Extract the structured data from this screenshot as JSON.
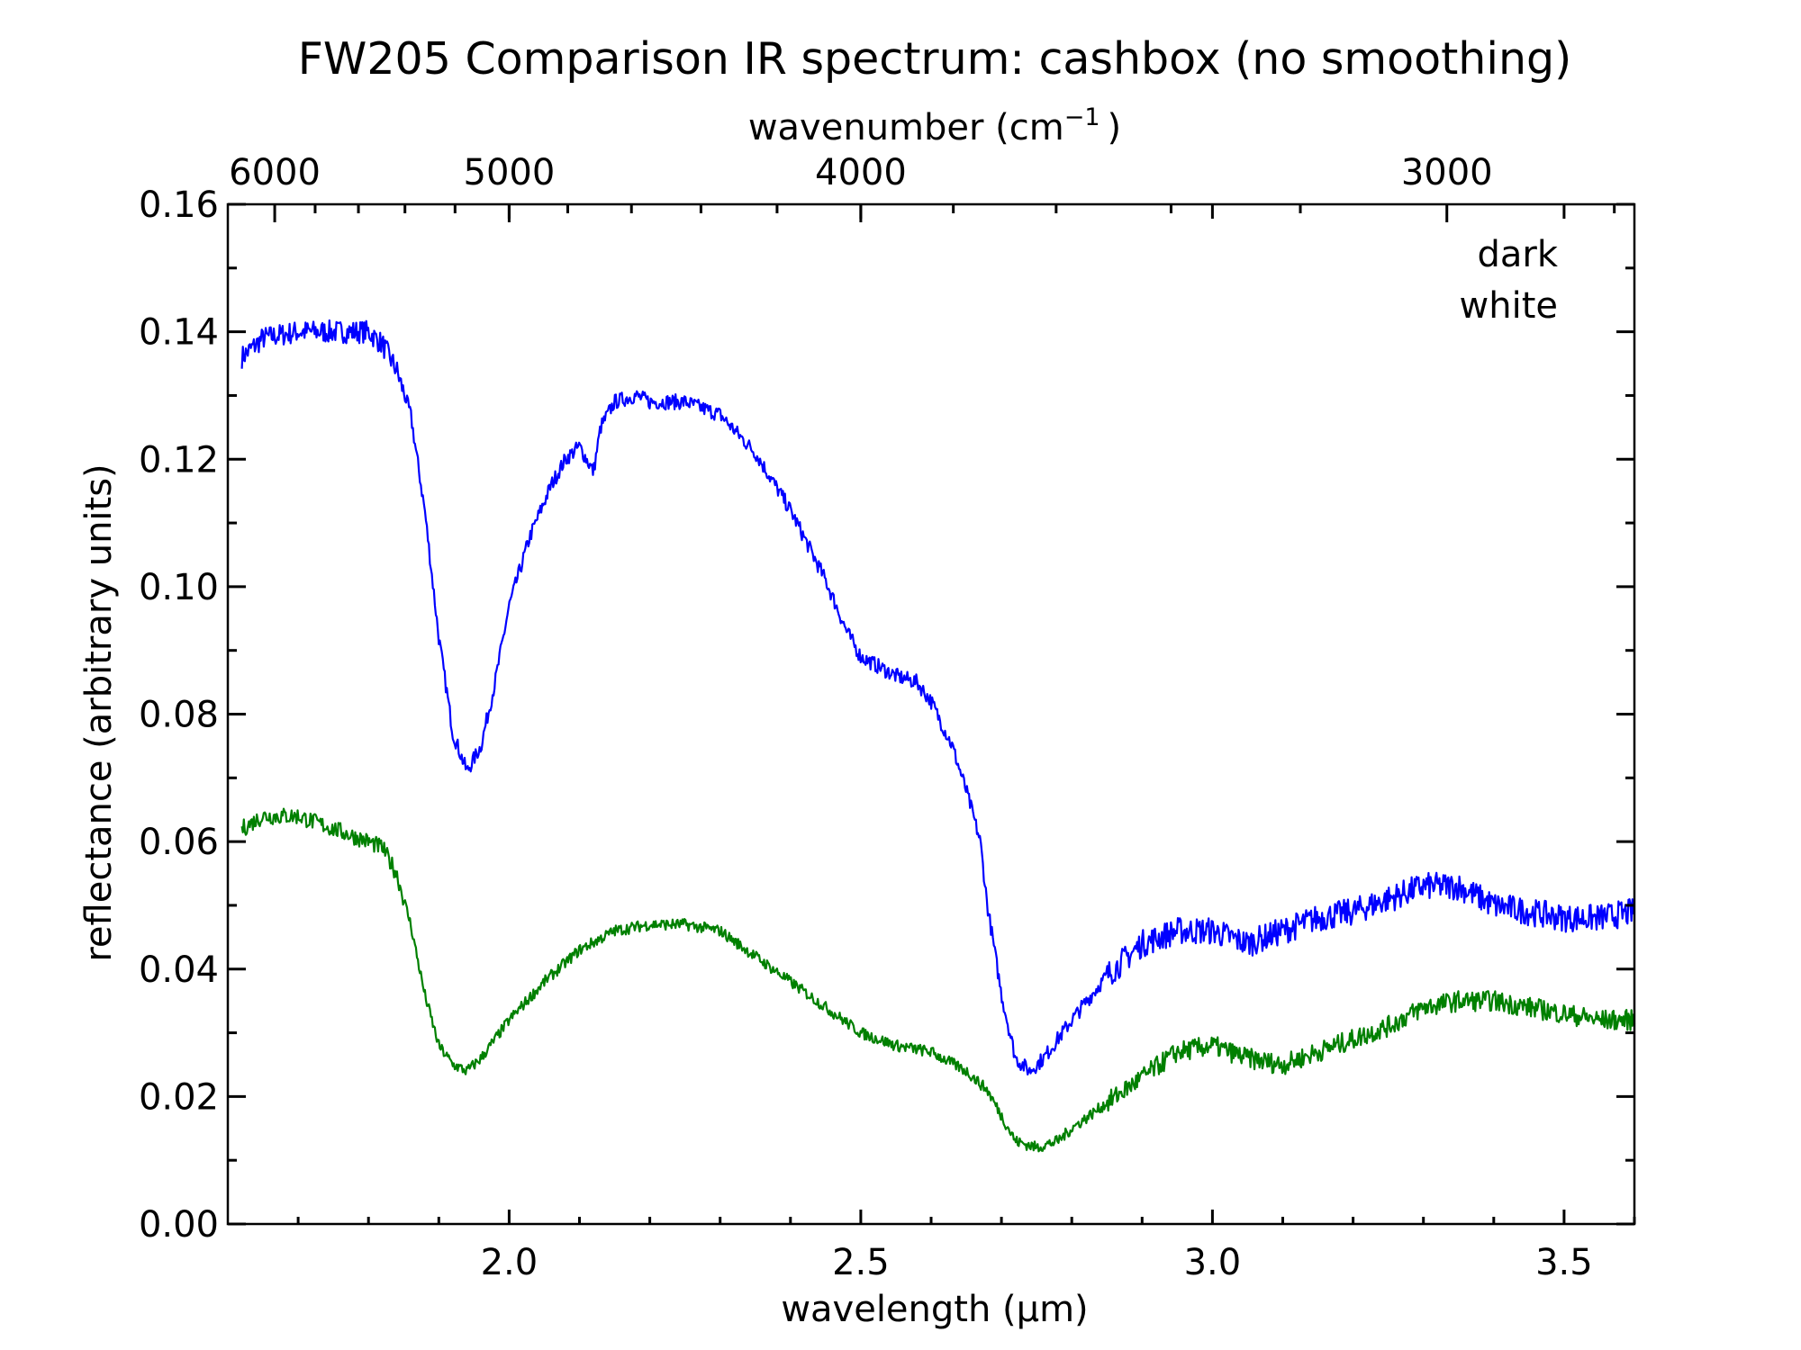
{
  "chart_data": {
    "type": "line",
    "title": "FW205 Comparison IR spectrum: cashbox (no smoothing)",
    "xlabel": "wavelength (μm)",
    "ylabel": "reflectance (arbitrary units)",
    "top_xlabel": "wavenumber (cm",
    "top_xlabel_sup": "−1",
    "top_xlabel_end": ")",
    "xlim": [
      1.6,
      3.6
    ],
    "ylim": [
      0.0,
      0.16
    ],
    "x_ticks": [
      2.0,
      2.5,
      3.0,
      3.5
    ],
    "x_tick_labels": [
      "2.0",
      "2.5",
      "3.0",
      "3.5"
    ],
    "y_ticks": [
      0.0,
      0.02,
      0.04,
      0.06,
      0.08,
      0.1,
      0.12,
      0.14,
      0.16
    ],
    "y_tick_labels": [
      "0.00",
      "0.02",
      "0.04",
      "0.06",
      "0.08",
      "0.10",
      "0.12",
      "0.14",
      "0.16"
    ],
    "top_ticks_wavenumber": [
      6000,
      5000,
      4000,
      3000
    ],
    "top_tick_labels": [
      "6000",
      "5000",
      "4000",
      "3000"
    ],
    "legend_position": "top-right",
    "grid": false,
    "series": [
      {
        "name": "dark",
        "color": "#0000ff",
        "x": [
          1.62,
          1.65,
          1.7,
          1.75,
          1.8,
          1.82,
          1.84,
          1.86,
          1.88,
          1.9,
          1.92,
          1.94,
          1.96,
          1.98,
          2.0,
          2.03,
          2.06,
          2.08,
          2.1,
          2.12,
          2.13,
          2.15,
          2.18,
          2.2,
          2.25,
          2.3,
          2.35,
          2.4,
          2.45,
          2.48,
          2.5,
          2.55,
          2.58,
          2.6,
          2.63,
          2.65,
          2.67,
          2.68,
          2.7,
          2.72,
          2.74,
          2.76,
          2.8,
          2.85,
          2.9,
          2.95,
          3.0,
          3.05,
          3.1,
          3.15,
          3.2,
          3.25,
          3.3,
          3.35,
          3.4,
          3.45,
          3.5,
          3.55,
          3.6
        ],
        "y": [
          0.136,
          0.139,
          0.14,
          0.14,
          0.14,
          0.138,
          0.134,
          0.127,
          0.112,
          0.092,
          0.077,
          0.071,
          0.075,
          0.085,
          0.097,
          0.108,
          0.116,
          0.12,
          0.122,
          0.118,
          0.125,
          0.129,
          0.13,
          0.129,
          0.129,
          0.127,
          0.121,
          0.112,
          0.101,
          0.093,
          0.089,
          0.086,
          0.085,
          0.082,
          0.075,
          0.068,
          0.06,
          0.05,
          0.036,
          0.026,
          0.024,
          0.026,
          0.032,
          0.039,
          0.044,
          0.046,
          0.046,
          0.044,
          0.046,
          0.048,
          0.049,
          0.051,
          0.053,
          0.053,
          0.05,
          0.049,
          0.048,
          0.048,
          0.049
        ],
        "noise": 0.0012
      },
      {
        "name": "white",
        "color": "#008000",
        "x": [
          1.62,
          1.65,
          1.7,
          1.75,
          1.8,
          1.82,
          1.84,
          1.86,
          1.88,
          1.9,
          1.92,
          1.94,
          1.96,
          1.98,
          2.0,
          2.05,
          2.1,
          2.15,
          2.2,
          2.25,
          2.3,
          2.35,
          2.4,
          2.45,
          2.5,
          2.55,
          2.6,
          2.65,
          2.68,
          2.7,
          2.72,
          2.75,
          2.78,
          2.8,
          2.85,
          2.9,
          2.95,
          3.0,
          3.05,
          3.1,
          3.15,
          3.2,
          3.25,
          3.3,
          3.35,
          3.4,
          3.45,
          3.5,
          3.55,
          3.6
        ],
        "y": [
          0.062,
          0.064,
          0.064,
          0.062,
          0.06,
          0.059,
          0.055,
          0.047,
          0.036,
          0.028,
          0.025,
          0.024,
          0.026,
          0.029,
          0.032,
          0.038,
          0.043,
          0.046,
          0.047,
          0.047,
          0.046,
          0.042,
          0.038,
          0.034,
          0.03,
          0.028,
          0.027,
          0.024,
          0.021,
          0.017,
          0.013,
          0.012,
          0.013,
          0.015,
          0.019,
          0.023,
          0.027,
          0.028,
          0.026,
          0.025,
          0.027,
          0.029,
          0.031,
          0.034,
          0.035,
          0.035,
          0.034,
          0.033,
          0.032,
          0.032
        ],
        "noise": 0.0009
      }
    ]
  }
}
